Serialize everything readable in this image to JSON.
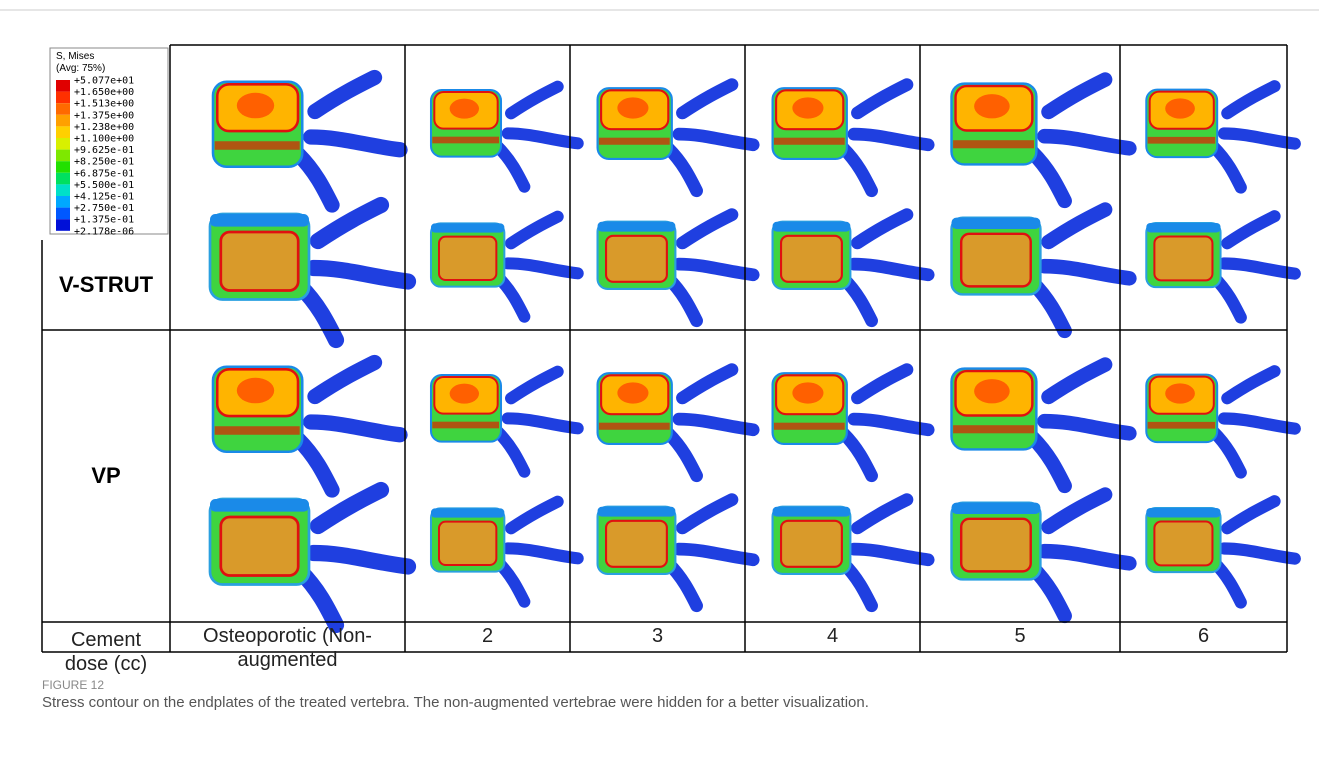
{
  "legend": {
    "title": "S, Mises",
    "subtitle": "(Avg: 75%)",
    "levels": [
      "+5.077e+01",
      "+1.650e+00",
      "+1.513e+00",
      "+1.375e+00",
      "+1.238e+00",
      "+1.100e+00",
      "+9.625e-01",
      "+8.250e-01",
      "+6.875e-01",
      "+5.500e-01",
      "+4.125e-01",
      "+2.750e-01",
      "+1.375e-01",
      "+2.178e-06"
    ],
    "colors": [
      "#e00000",
      "#ff3000",
      "#ff6a00",
      "#ffa000",
      "#ffd000",
      "#d8f000",
      "#7ee800",
      "#22e000",
      "#00e060",
      "#00e0c8",
      "#00a8ff",
      "#0058ff",
      "#0010d8"
    ]
  },
  "table": {
    "row_labels": [
      "V-STRUT",
      "VP"
    ],
    "dose_label": "Cement dose (cc)",
    "columns": [
      "Osteoporotic (Non-augmented",
      "2",
      "3",
      "4",
      "5",
      "6"
    ]
  },
  "figure": {
    "label": "FIGURE 12",
    "caption": "Stress contour on the endplates of the treated vertebra. The non-augmented vertebrae were hidden for a better visualization."
  }
}
